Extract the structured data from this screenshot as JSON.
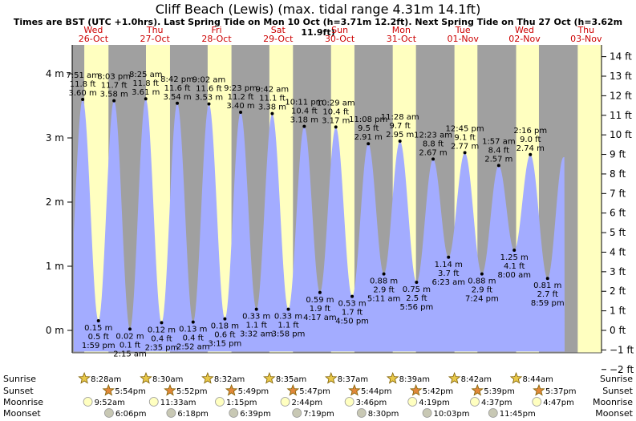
{
  "title": "Cliff Beach (Lewis) (max. tidal range 4.31m 14.1ft)",
  "subtitle": "Times are BST (UTC +1.0hrs). Last Spring Tide on Mon 10 Oct (h=3.71m 12.2ft). Next Spring Tide on Thu 27 Oct (h=3.62m 11.9ft)",
  "colors": {
    "sea": "#a3acff",
    "night": "#a0a0a0",
    "day": "#ffffc0",
    "axis_label": "#cc0000"
  },
  "icons": {
    "sunrise": "sunrise-star-icon",
    "sunset": "sunset-star-icon",
    "moonrise": "moonrise-moon-icon",
    "moonset": "moonset-moon-icon"
  },
  "chart_data": {
    "type": "area",
    "x_axis": {
      "start": "2022-10-26T00:00",
      "end": "2022-11-03T00:00",
      "unit": "time (BST)"
    },
    "days": [
      {
        "dow": "Wed",
        "date": "26-Oct"
      },
      {
        "dow": "Thu",
        "date": "27-Oct"
      },
      {
        "dow": "Fri",
        "date": "28-Oct"
      },
      {
        "dow": "Sat",
        "date": "29-Oct"
      },
      {
        "dow": "Sun",
        "date": "30-Oct"
      },
      {
        "dow": "Mon",
        "date": "31-Oct"
      },
      {
        "dow": "Tue",
        "date": "01-Nov"
      },
      {
        "dow": "Wed",
        "date": "02-Nov"
      },
      {
        "dow": "Thu",
        "date": "03-Nov"
      }
    ],
    "y_left": {
      "unit": "m",
      "range": [
        -0.35,
        4.45
      ],
      "ticks": [
        "0 m",
        "1 m",
        "2 m",
        "3 m",
        "4 m"
      ],
      "values": [
        0,
        1,
        2,
        3,
        4
      ]
    },
    "y_right": {
      "unit": "ft",
      "ticks": [
        "−2 ft",
        "−1 ft",
        "0 ft",
        "1 ft",
        "2 ft",
        "3 ft",
        "4 ft",
        "5 ft",
        "6 ft",
        "7 ft",
        "8 ft",
        "9 ft",
        "10 ft",
        "11 ft",
        "12 ft",
        "13 ft",
        "14 ft"
      ],
      "values": [
        -2,
        -1,
        0,
        1,
        2,
        3,
        4,
        5,
        6,
        7,
        8,
        9,
        10,
        11,
        12,
        13,
        14
      ]
    },
    "tides": [
      {
        "type": "high",
        "day": 0,
        "time": "7:51 am",
        "m": 3.6,
        "label_m": "3.60 m",
        "label_ft": "11.8 ft"
      },
      {
        "type": "low",
        "day": 0,
        "time": "1:59 pm",
        "m": 0.15,
        "label_m": "0.15 m",
        "label_ft": "0.5 ft"
      },
      {
        "type": "high",
        "day": 0,
        "time": "8:03 pm",
        "m": 3.58,
        "label_m": "3.58 m",
        "label_ft": "11.7 ft"
      },
      {
        "type": "low",
        "day": 1,
        "time": "2:15 am",
        "m": 0.02,
        "label_m": "0.02 m",
        "label_ft": "0.1 ft"
      },
      {
        "type": "high",
        "day": 1,
        "time": "8:25 am",
        "m": 3.61,
        "label_m": "3.61 m",
        "label_ft": "11.8 ft"
      },
      {
        "type": "low",
        "day": 1,
        "time": "2:35 pm",
        "m": 0.12,
        "label_m": "0.12 m",
        "label_ft": "0.4 ft"
      },
      {
        "type": "high",
        "day": 1,
        "time": "8:42 pm",
        "m": 3.54,
        "label_m": "3.54 m",
        "label_ft": "11.6 ft"
      },
      {
        "type": "low",
        "day": 2,
        "time": "2:52 am",
        "m": 0.13,
        "label_m": "0.13 m",
        "label_ft": "0.4 ft"
      },
      {
        "type": "high",
        "day": 2,
        "time": "9:02 am",
        "m": 3.53,
        "label_m": "3.53 m",
        "label_ft": "11.6 ft"
      },
      {
        "type": "low",
        "day": 2,
        "time": "3:15 pm",
        "m": 0.18,
        "label_m": "0.18 m",
        "label_ft": "0.6 ft"
      },
      {
        "type": "high",
        "day": 2,
        "time": "9:23 pm",
        "m": 3.4,
        "label_m": "3.40 m",
        "label_ft": "11.2 ft"
      },
      {
        "type": "low",
        "day": 3,
        "time": "3:32 am",
        "m": 0.33,
        "label_m": "0.33 m",
        "label_ft": "1.1 ft"
      },
      {
        "type": "high",
        "day": 3,
        "time": "9:42 am",
        "m": 3.38,
        "label_m": "3.38 m",
        "label_ft": "11.1 ft"
      },
      {
        "type": "low",
        "day": 3,
        "time": "3:58 pm",
        "m": 0.33,
        "label_m": "0.33 m",
        "label_ft": "1.1 ft"
      },
      {
        "type": "high",
        "day": 3,
        "time": "10:11 pm",
        "m": 3.18,
        "label_m": "3.18 m",
        "label_ft": "10.4 ft"
      },
      {
        "type": "low",
        "day": 4,
        "time": "4:17 am",
        "m": 0.59,
        "label_m": "0.59 m",
        "label_ft": "1.9 ft"
      },
      {
        "type": "high",
        "day": 4,
        "time": "10:29 am",
        "m": 3.17,
        "label_m": "3.17 m",
        "label_ft": "10.4 ft"
      },
      {
        "type": "low",
        "day": 4,
        "time": "4:50 pm",
        "m": 0.53,
        "label_m": "0.53 m",
        "label_ft": "1.7 ft"
      },
      {
        "type": "high",
        "day": 4,
        "time": "11:08 pm",
        "m": 2.91,
        "label_m": "2.91 m",
        "label_ft": "9.5 ft"
      },
      {
        "type": "low",
        "day": 5,
        "time": "5:11 am",
        "m": 0.88,
        "label_m": "0.88 m",
        "label_ft": "2.9 ft"
      },
      {
        "type": "high",
        "day": 5,
        "time": "11:28 am",
        "m": 2.95,
        "label_m": "2.95 m",
        "label_ft": "9.7 ft"
      },
      {
        "type": "low",
        "day": 5,
        "time": "5:56 pm",
        "m": 0.75,
        "label_m": "0.75 m",
        "label_ft": "2.5 ft"
      },
      {
        "type": "high",
        "day": 6,
        "time": "12:23 am",
        "m": 2.67,
        "label_m": "2.67 m",
        "label_ft": "8.8 ft"
      },
      {
        "type": "low",
        "day": 6,
        "time": "6:23 am",
        "m": 1.14,
        "label_m": "1.14 m",
        "label_ft": "3.7 ft"
      },
      {
        "type": "high",
        "day": 6,
        "time": "12:45 pm",
        "m": 2.77,
        "label_m": "2.77 m",
        "label_ft": "9.1 ft"
      },
      {
        "type": "low",
        "day": 6,
        "time": "7:24 pm",
        "m": 0.88,
        "label_m": "0.88 m",
        "label_ft": "2.9 ft"
      },
      {
        "type": "high",
        "day": 7,
        "time": "1:57 am",
        "m": 2.57,
        "label_m": "2.57 m",
        "label_ft": "8.4 ft"
      },
      {
        "type": "low",
        "day": 7,
        "time": "8:00 am",
        "m": 1.25,
        "label_m": "1.25 m",
        "label_ft": "4.1 ft"
      },
      {
        "type": "high",
        "day": 7,
        "time": "2:16 pm",
        "m": 2.74,
        "label_m": "2.74 m",
        "label_ft": "9.0 ft"
      },
      {
        "type": "low",
        "day": 7,
        "time": "8:59 pm",
        "m": 0.81,
        "label_m": "0.81 m",
        "label_ft": "2.7 ft"
      }
    ],
    "astro": {
      "labels": [
        "Sunrise",
        "Sunset",
        "Moonrise",
        "Moonset"
      ],
      "sunrise": [
        "8:28am",
        "8:30am",
        "8:32am",
        "8:35am",
        "8:37am",
        "8:39am",
        "8:42am",
        "8:44am"
      ],
      "sunset": [
        "5:54pm",
        "5:52pm",
        "5:49pm",
        "5:47pm",
        "5:44pm",
        "5:42pm",
        "5:39pm",
        "5:37pm"
      ],
      "moonrise": [
        "9:52am",
        "11:33am",
        "1:15pm",
        "2:44pm",
        "3:46pm",
        "4:19pm",
        "4:37pm",
        "4:47pm"
      ],
      "moonset": [
        "6:06pm",
        "6:18pm",
        "6:39pm",
        "7:19pm",
        "8:30pm",
        "10:03pm",
        "11:45pm",
        ""
      ]
    }
  }
}
